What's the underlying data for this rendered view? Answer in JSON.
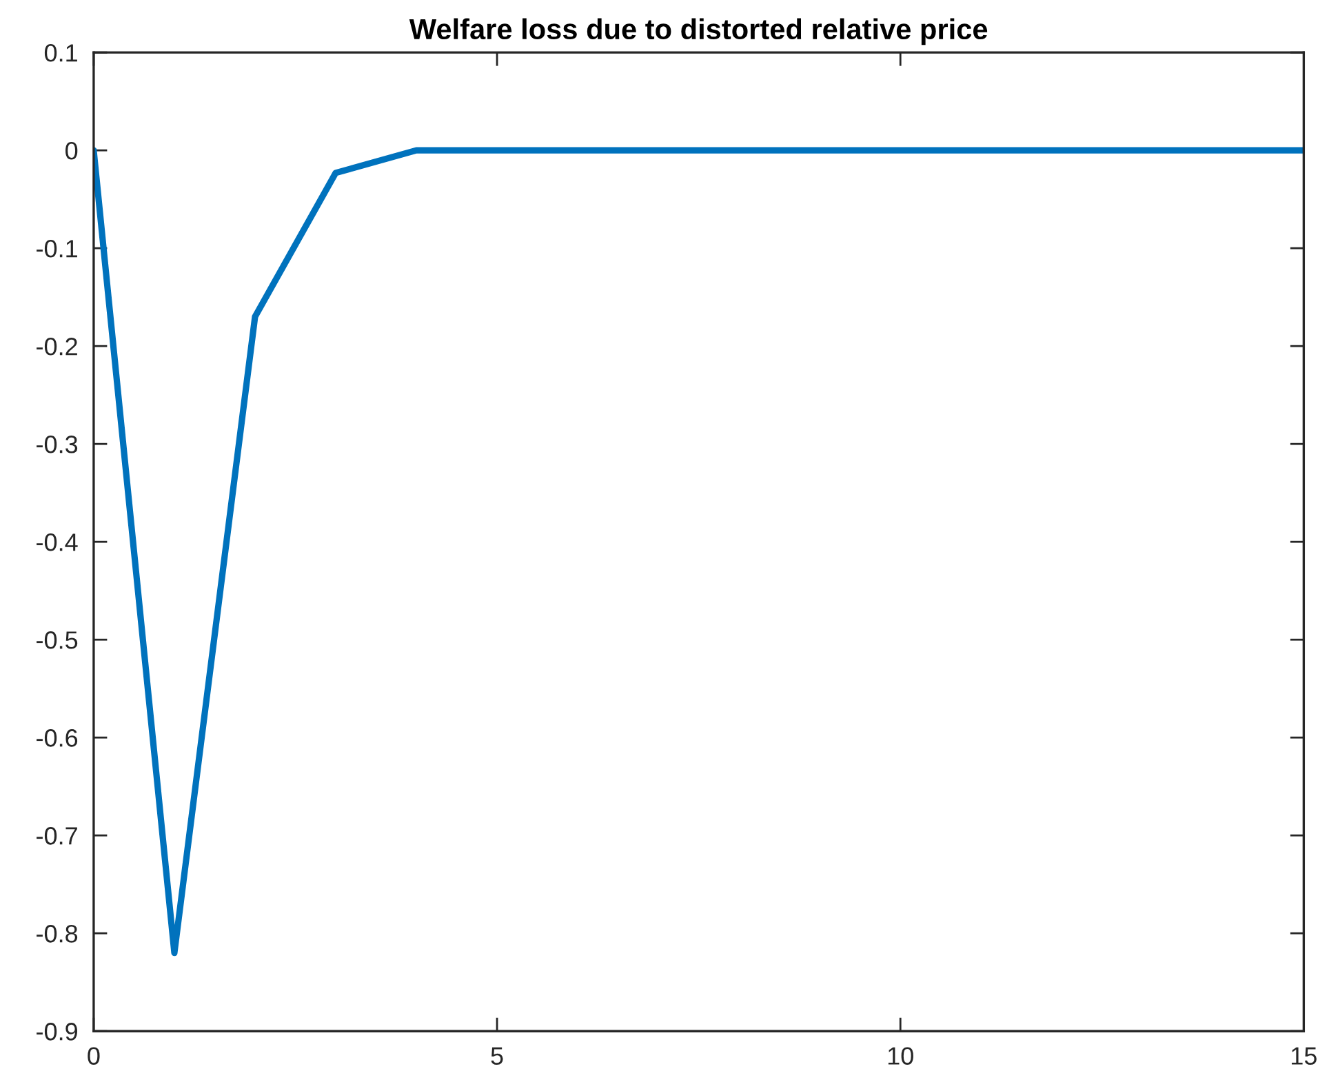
{
  "chart_data": {
    "type": "line",
    "title": "Welfare loss due to distorted relative price",
    "x": [
      0,
      1,
      2,
      3,
      4,
      5,
      6,
      7,
      8,
      9,
      10,
      11,
      12,
      13,
      14,
      15
    ],
    "series": [
      {
        "color": "#0072bd",
        "values": [
          0,
          -0.82,
          -0.17,
          -0.023,
          0,
          0,
          0,
          0,
          0,
          0,
          0,
          0,
          0,
          0,
          0,
          0
        ]
      }
    ],
    "xlim": [
      0,
      15
    ],
    "xticks": [
      0,
      5,
      10,
      15
    ],
    "ylim": [
      -0.9,
      0.1
    ],
    "yticks": [
      -0.9,
      -0.8,
      -0.7,
      -0.6,
      -0.5,
      -0.4,
      -0.3,
      -0.2,
      -0.1,
      0,
      0.1
    ],
    "grid": false,
    "marker": "none",
    "line_style": "solid"
  }
}
